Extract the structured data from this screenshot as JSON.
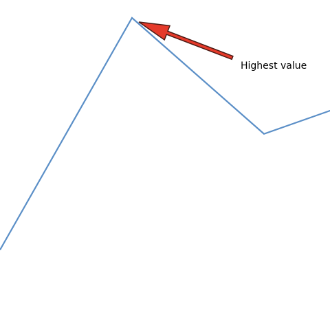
{
  "chart_data": {
    "type": "line",
    "x": [
      0,
      1,
      2,
      3
    ],
    "series": [
      {
        "values": [
          1.0,
          4.0,
          2.5,
          3.1
        ]
      }
    ],
    "xlim": [
      0,
      3
    ],
    "ylim": [
      0,
      4
    ],
    "grid": false,
    "legend": "none",
    "annotations": [
      {
        "text": "Highest value",
        "x": 1,
        "y": 4.0,
        "arrow": true
      }
    ],
    "colors": {
      "line": "#5b8fc7",
      "arrow_fill": "#e53a2a",
      "arrow_stroke": "#4a1a14",
      "text": "#000000"
    }
  }
}
